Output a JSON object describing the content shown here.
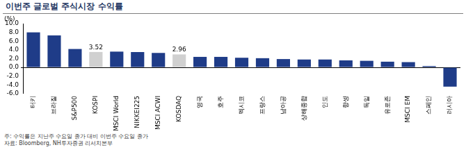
{
  "chart_data": {
    "type": "bar",
    "title": "이번주 글로벌 주식시장 수익률",
    "y_label": "(%)",
    "categories": [
      "터키",
      "브라질",
      "S&P500",
      "KOSPI",
      "MSCI World",
      "NIKKEI225",
      "MSCI ACWI",
      "KOSDAQ",
      "영국",
      "호주",
      "멕시코",
      "프랑스",
      "남아공",
      "상해종합",
      "인도",
      "항셍",
      "독일",
      "유로존",
      "MSCI EM",
      "스페인",
      "러시아"
    ],
    "values": [
      8.0,
      7.3,
      4.2,
      3.52,
      3.6,
      3.5,
      3.3,
      2.96,
      2.4,
      2.4,
      2.2,
      2.1,
      1.9,
      1.8,
      1.8,
      1.6,
      1.5,
      1.3,
      1.2,
      0.3,
      -4.4
    ],
    "data_labels": true,
    "value_labels": [
      null,
      null,
      null,
      "3.52",
      null,
      null,
      null,
      "2.96",
      null,
      null,
      null,
      null,
      null,
      null,
      null,
      null,
      null,
      null,
      null,
      null,
      null
    ],
    "colors": [
      "#1f3c88",
      "#1f3c88",
      "#1f3c88",
      "#d0d0d0",
      "#1f3c88",
      "#1f3c88",
      "#1f3c88",
      "#d0d0d0",
      "#1f3c88",
      "#1f3c88",
      "#1f3c88",
      "#1f3c88",
      "#1f3c88",
      "#1f3c88",
      "#1f3c88",
      "#1f3c88",
      "#1f3c88",
      "#1f3c88",
      "#1f3c88",
      "#1f3c88",
      "#1f3c88"
    ],
    "ylim": [
      -6.0,
      10.0
    ],
    "yticks": [
      {
        "value": -6,
        "label": "-6.0"
      },
      {
        "value": -4,
        "label": "-4.0"
      },
      {
        "value": -2,
        "label": "-2.0"
      },
      {
        "value": 0,
        "label": "0.0"
      },
      {
        "value": 2,
        "label": "2.0"
      },
      {
        "value": 4,
        "label": "4.0"
      },
      {
        "value": 6,
        "label": "6.0"
      },
      {
        "value": 8,
        "label": "8.0"
      },
      {
        "value": 10,
        "label": "10.0"
      }
    ],
    "grid": false,
    "notes": [
      "주: 수익률은 지난주 수요일 종가 대비 이번주 수요일 종가",
      "자료: Bloomberg, NH투자증권 리서치본부"
    ]
  }
}
